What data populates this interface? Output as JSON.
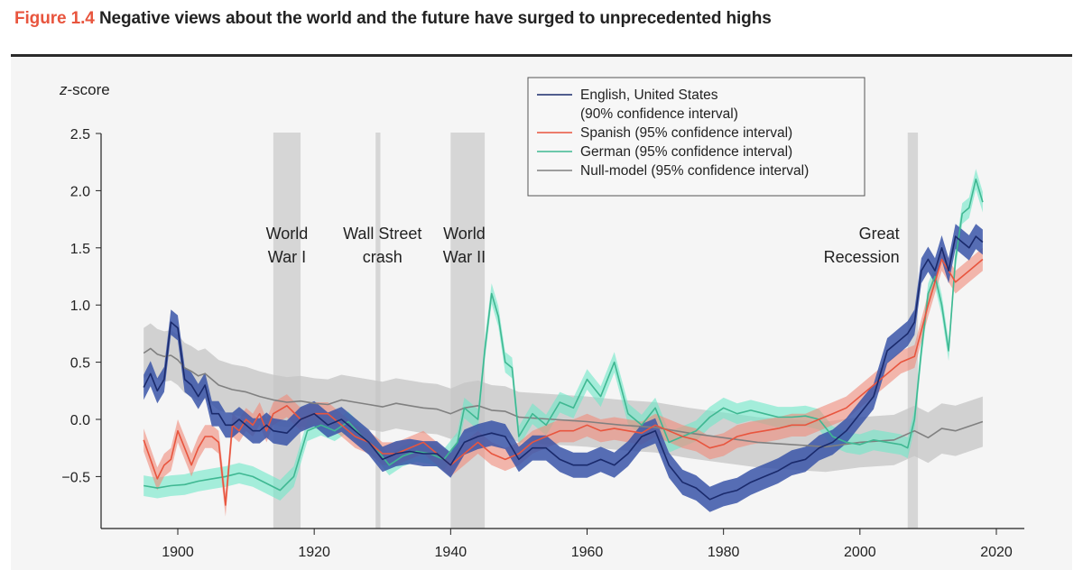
{
  "figure": {
    "number_label": "Figure 1.4",
    "title": "Negative views about the world and the future have surged to unprecedented highs"
  },
  "chart_data": {
    "type": "line",
    "title": "Negative views about the world and the future have surged to unprecedented highs",
    "xlabel": "",
    "ylabel": "z-score",
    "xlim": [
      1888,
      2023
    ],
    "ylim": [
      -0.95,
      2.55
    ],
    "xticks": [
      1900,
      1920,
      1940,
      1960,
      1980,
      2000,
      2020
    ],
    "xtick_labels": [
      "1900",
      "1920",
      "1940",
      "1960",
      "1980",
      "2000",
      "2020"
    ],
    "yticks": [
      -0.5,
      0.0,
      0.5,
      1.0,
      1.5,
      2.0,
      2.5
    ],
    "ytick_labels": [
      "−0.5",
      "0.0",
      "0.5",
      "1.0",
      "1.5",
      "2.0",
      "2.5"
    ],
    "grid": false,
    "legend_position": "top-right",
    "events": [
      {
        "label_lines": [
          "World",
          "War I"
        ],
        "start": 1914,
        "end": 1918,
        "label_anchor": "middle",
        "label_x": 1916
      },
      {
        "label_lines": [
          "Wall Street",
          "crash"
        ],
        "start": 1929,
        "end": 1929.7,
        "label_anchor": "middle",
        "label_x": 1930
      },
      {
        "label_lines": [
          "World",
          "War II"
        ],
        "start": 1940,
        "end": 1945,
        "label_anchor": "middle",
        "label_x": 1942
      },
      {
        "label_lines": [
          "Great",
          "Recession"
        ],
        "start": 2007,
        "end": 2008.5,
        "label_anchor": "end",
        "label_x": 2005.8
      }
    ],
    "series": [
      {
        "name": "Null-model",
        "legend_label": "Null-model (95% confidence interval)",
        "color": "#808080",
        "band_color": "#c4c4c4",
        "band_opacity": 0.75,
        "x": [
          1895,
          1896,
          1897,
          1898,
          1899,
          1900,
          1901,
          1902,
          1903,
          1904,
          1905,
          1906,
          1907,
          1908,
          1910,
          1912,
          1914,
          1916,
          1918,
          1920,
          1922,
          1924,
          1926,
          1928,
          1930,
          1932,
          1934,
          1936,
          1938,
          1940,
          1942,
          1944,
          1946,
          1948,
          1950,
          1955,
          1960,
          1965,
          1970,
          1975,
          1980,
          1985,
          1990,
          1995,
          2000,
          2005,
          2008,
          2010,
          2012,
          2014,
          2016,
          2018
        ],
        "y": [
          0.58,
          0.62,
          0.57,
          0.55,
          0.56,
          0.52,
          0.45,
          0.42,
          0.38,
          0.4,
          0.35,
          0.3,
          0.28,
          0.26,
          0.24,
          0.2,
          0.17,
          0.15,
          0.16,
          0.14,
          0.13,
          0.17,
          0.15,
          0.13,
          0.11,
          0.14,
          0.12,
          0.1,
          0.09,
          0.05,
          0.1,
          0.12,
          0.08,
          0.07,
          0.02,
          0.0,
          -0.02,
          -0.05,
          -0.07,
          -0.12,
          -0.16,
          -0.2,
          -0.22,
          -0.24,
          -0.2,
          -0.18,
          -0.1,
          -0.16,
          -0.08,
          -0.1,
          -0.06,
          -0.02
        ],
        "band": 0.22
      },
      {
        "name": "German",
        "legend_label": "German (95% confidence interval)",
        "color": "#3fb892",
        "band_color": "#6ee8c8",
        "band_opacity": 0.6,
        "x": [
          1895,
          1897,
          1899,
          1901,
          1903,
          1905,
          1907,
          1909,
          1911,
          1913,
          1915,
          1917,
          1919,
          1921,
          1923,
          1925,
          1927,
          1929,
          1931,
          1933,
          1935,
          1937,
          1939,
          1941,
          1942,
          1944,
          1945,
          1946,
          1947,
          1948,
          1949,
          1950,
          1952,
          1954,
          1956,
          1958,
          1960,
          1962,
          1964,
          1966,
          1968,
          1970,
          1972,
          1974,
          1976,
          1978,
          1980,
          1982,
          1984,
          1986,
          1988,
          1990,
          1992,
          1994,
          1996,
          1998,
          2000,
          2002,
          2004,
          2006,
          2007,
          2008,
          2009,
          2010,
          2011,
          2012,
          2013,
          2014,
          2015,
          2016,
          2017,
          2018
        ],
        "y": [
          -0.58,
          -0.6,
          -0.58,
          -0.57,
          -0.54,
          -0.52,
          -0.5,
          -0.47,
          -0.5,
          -0.56,
          -0.62,
          -0.5,
          -0.1,
          -0.05,
          -0.1,
          -0.02,
          -0.15,
          -0.25,
          -0.4,
          -0.32,
          -0.28,
          -0.3,
          -0.35,
          -0.2,
          0.1,
          0.0,
          0.6,
          1.1,
          0.9,
          0.5,
          0.45,
          -0.15,
          0.05,
          -0.05,
          0.15,
          0.1,
          0.35,
          0.2,
          0.5,
          0.05,
          -0.05,
          0.1,
          -0.2,
          -0.15,
          -0.1,
          0.02,
          0.1,
          0.05,
          0.08,
          0.05,
          0.02,
          0.02,
          0.03,
          0.0,
          -0.15,
          -0.2,
          -0.22,
          -0.18,
          -0.2,
          -0.22,
          -0.25,
          0.0,
          0.6,
          1.1,
          1.25,
          1.0,
          0.6,
          1.4,
          1.8,
          1.85,
          2.1,
          1.9
        ],
        "band": 0.09
      },
      {
        "name": "Spanish",
        "legend_label": "Spanish (95% confidence interval)",
        "color": "#e8553e",
        "band_color": "#f08a7a",
        "band_opacity": 0.6,
        "x": [
          1895,
          1896,
          1897,
          1898,
          1899,
          1900,
          1901,
          1902,
          1903,
          1904,
          1905,
          1906,
          1907,
          1908,
          1909,
          1910,
          1911,
          1912,
          1913,
          1914,
          1916,
          1918,
          1920,
          1922,
          1924,
          1926,
          1928,
          1930,
          1932,
          1934,
          1936,
          1938,
          1940,
          1942,
          1944,
          1946,
          1948,
          1950,
          1952,
          1954,
          1956,
          1958,
          1960,
          1962,
          1964,
          1966,
          1968,
          1970,
          1972,
          1974,
          1976,
          1978,
          1980,
          1982,
          1984,
          1986,
          1988,
          1990,
          1992,
          1994,
          1996,
          1998,
          2000,
          2002,
          2004,
          2006,
          2008,
          2010,
          2012,
          2014,
          2016,
          2018
        ],
        "y": [
          -0.18,
          -0.35,
          -0.52,
          -0.4,
          -0.35,
          -0.1,
          -0.25,
          -0.4,
          -0.25,
          -0.15,
          -0.15,
          -0.2,
          -0.75,
          -0.05,
          -0.1,
          0.0,
          -0.05,
          0.05,
          -0.1,
          0.05,
          0.12,
          0.0,
          0.05,
          0.05,
          -0.05,
          -0.15,
          -0.2,
          -0.3,
          -0.3,
          -0.25,
          -0.2,
          -0.3,
          -0.4,
          -0.3,
          -0.2,
          -0.3,
          -0.35,
          -0.3,
          -0.2,
          -0.15,
          -0.1,
          -0.1,
          -0.05,
          -0.1,
          -0.08,
          -0.1,
          -0.12,
          -0.05,
          -0.1,
          -0.15,
          -0.18,
          -0.25,
          -0.22,
          -0.15,
          -0.12,
          -0.1,
          -0.08,
          -0.05,
          -0.05,
          0.0,
          0.05,
          0.1,
          0.2,
          0.3,
          0.4,
          0.5,
          0.55,
          1.0,
          1.4,
          1.2,
          1.3,
          1.4
        ],
        "band": 0.1
      },
      {
        "name": "English, United States",
        "legend_label_lines": [
          "English, United States",
          "(90% confidence interval)"
        ],
        "color": "#1a2a6c",
        "band_color": "#3a55a8",
        "band_opacity": 0.85,
        "x": [
          1895,
          1896,
          1897,
          1898,
          1899,
          1900,
          1901,
          1902,
          1903,
          1904,
          1905,
          1906,
          1907,
          1908,
          1909,
          1910,
          1911,
          1912,
          1913,
          1914,
          1916,
          1918,
          1920,
          1922,
          1924,
          1926,
          1928,
          1930,
          1932,
          1934,
          1936,
          1938,
          1940,
          1942,
          1944,
          1946,
          1948,
          1950,
          1952,
          1954,
          1956,
          1958,
          1960,
          1962,
          1964,
          1966,
          1968,
          1970,
          1972,
          1974,
          1976,
          1978,
          1980,
          1982,
          1984,
          1986,
          1988,
          1990,
          1992,
          1994,
          1996,
          1998,
          2000,
          2002,
          2004,
          2006,
          2007,
          2008,
          2009,
          2010,
          2011,
          2012,
          2013,
          2014,
          2015,
          2016,
          2017,
          2018
        ],
        "y": [
          0.28,
          0.4,
          0.25,
          0.35,
          0.85,
          0.8,
          0.35,
          0.3,
          0.2,
          0.3,
          0.05,
          0.05,
          -0.05,
          -0.05,
          0.0,
          -0.05,
          -0.1,
          -0.1,
          -0.05,
          -0.1,
          -0.12,
          0.0,
          0.05,
          -0.05,
          0.0,
          -0.1,
          -0.2,
          -0.35,
          -0.3,
          -0.28,
          -0.3,
          -0.3,
          -0.4,
          -0.2,
          -0.15,
          -0.12,
          -0.15,
          -0.35,
          -0.25,
          -0.25,
          -0.35,
          -0.4,
          -0.4,
          -0.35,
          -0.4,
          -0.3,
          -0.15,
          -0.1,
          -0.4,
          -0.55,
          -0.6,
          -0.7,
          -0.65,
          -0.62,
          -0.55,
          -0.5,
          -0.45,
          -0.38,
          -0.35,
          -0.25,
          -0.2,
          -0.1,
          0.05,
          0.2,
          0.6,
          0.7,
          0.75,
          0.85,
          1.3,
          1.4,
          1.3,
          1.5,
          1.3,
          1.6,
          1.55,
          1.5,
          1.6,
          1.55
        ],
        "band": 0.11
      }
    ]
  }
}
